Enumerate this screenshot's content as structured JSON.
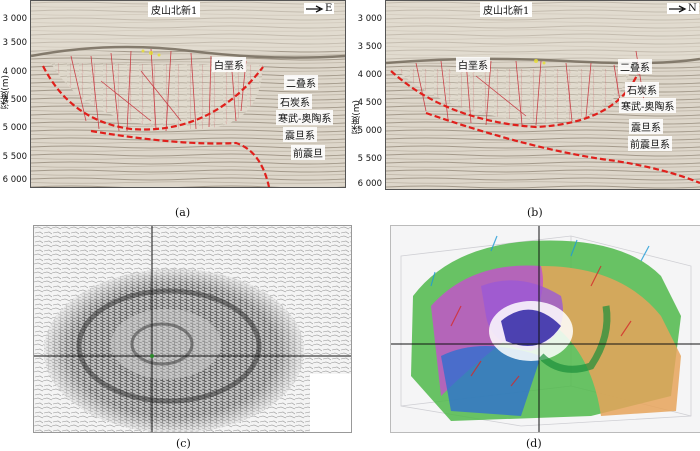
{
  "panel_a": {
    "well": "皮山北新1",
    "direction": "E",
    "depth_axis_title": "深度(m)",
    "depth_ticks": [
      "3 000",
      "3 500",
      "4 000",
      "4 500",
      "5 000",
      "5 500",
      "6 000"
    ],
    "labels": {
      "cretaceous": "白垩系",
      "permian": "二叠系",
      "carboniferous": "石炭系",
      "cambrian_ordovician": "寒武-奥陶系",
      "sinian": "震旦系",
      "presinian": "前震旦"
    },
    "caption": "(a)"
  },
  "panel_b": {
    "well": "皮山北新1",
    "direction": "N",
    "depth_axis_title": "深度(m)",
    "depth_ticks": [
      "3 000",
      "3 500",
      "4 000",
      "4 500",
      "5 000",
      "5 500",
      "6 000"
    ],
    "labels": {
      "cretaceous": "白垩系",
      "permian": "二叠系",
      "carboniferous": "石炭系",
      "cambrian_ordovician": "寒武-奥陶系",
      "sinian": "震旦系",
      "presinian": "前震旦系"
    },
    "caption": "(b)"
  },
  "panel_c": {
    "caption": "(c)"
  },
  "panel_d": {
    "caption": "(d)"
  },
  "colors": {
    "boundary": "#e0201c",
    "fault": "#c8323c",
    "seismic_bg": "#d8d2c6"
  }
}
